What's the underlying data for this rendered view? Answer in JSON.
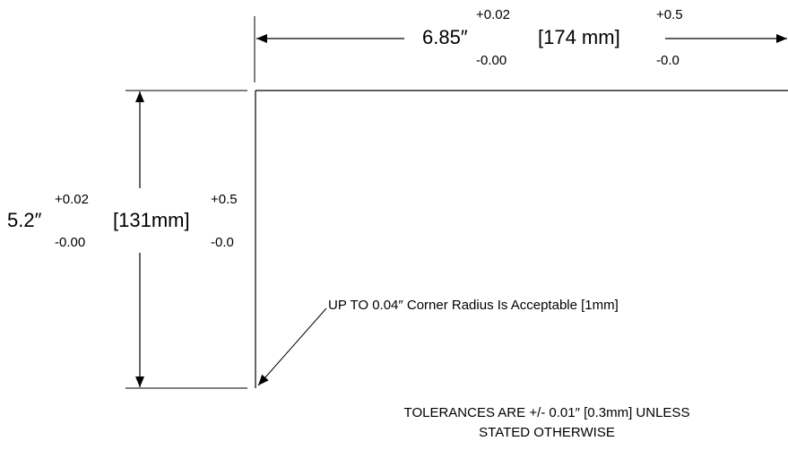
{
  "width_dimension": {
    "nominal": "6.85″",
    "upper_tol": "+0.02",
    "lower_tol": "-0.00",
    "metric": "[174 mm]",
    "metric_upper_tol": "+0.5",
    "metric_lower_tol": "-0.0"
  },
  "height_dimension": {
    "nominal": "5.2″",
    "upper_tol": "+0.02",
    "lower_tol": "-0.00",
    "metric": "[131mm]",
    "metric_upper_tol": "+0.5",
    "metric_lower_tol": "-0.0"
  },
  "corner_note": "UP TO 0.04″ Corner Radius Is Acceptable [1mm]",
  "tolerance_note": {
    "line1": "TOLERANCES ARE  +/- 0.01″ [0.3mm] UNLESS",
    "line2": "STATED OTHERWISE"
  }
}
